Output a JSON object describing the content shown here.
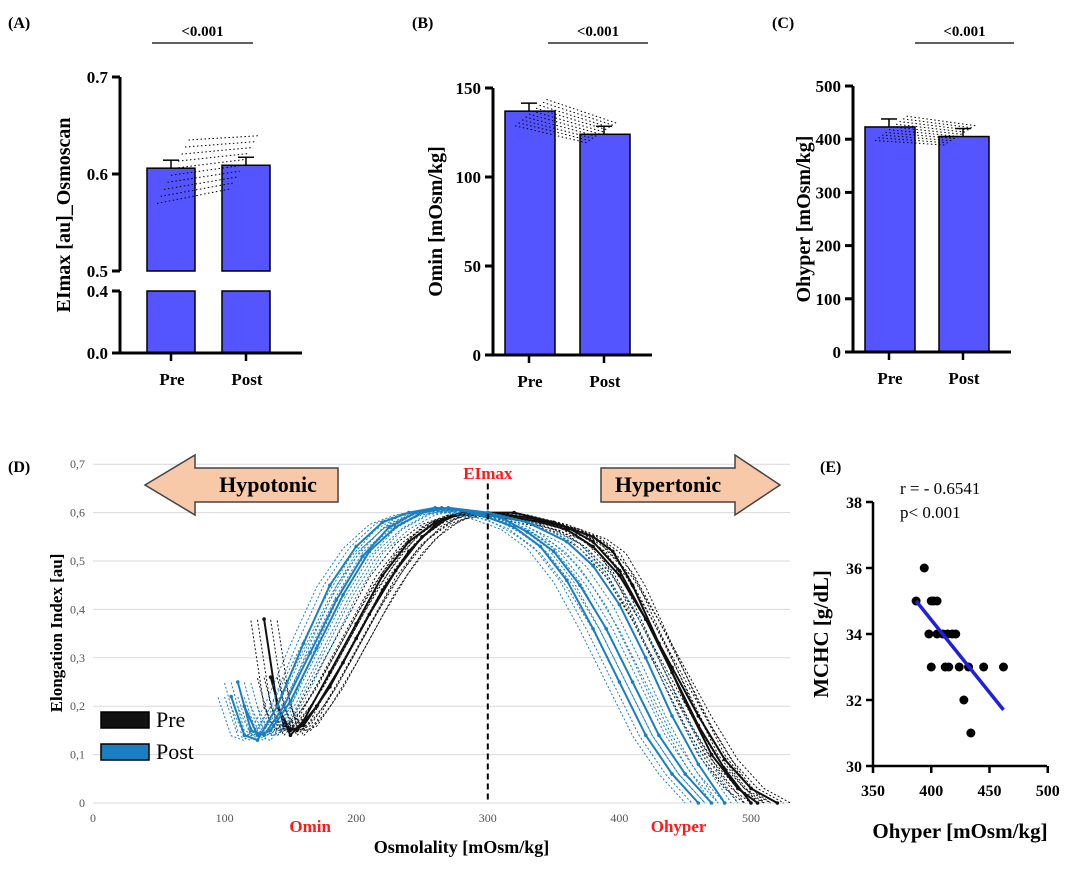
{
  "chart_data": [
    {
      "panel": "(A)",
      "type": "bar",
      "categories": [
        "Pre",
        "Post"
      ],
      "values": [
        0.606,
        0.609
      ],
      "ylabel": "EImax [au]_Osmoscan",
      "yticks": [
        "0.0",
        "0.4",
        "0.5",
        "0.6",
        "0.7"
      ],
      "axis_break": [
        0.4,
        0.5
      ],
      "ylim": [
        0,
        0.7
      ],
      "significance": "<0.001",
      "bar_color": "#5555ff"
    },
    {
      "panel": "(B)",
      "type": "bar",
      "categories": [
        "Pre",
        "Post"
      ],
      "values": [
        137,
        124
      ],
      "ylabel": "Omin [mOsm/kg]",
      "yticks": [
        "0",
        "50",
        "100",
        "150"
      ],
      "ylim": [
        0,
        150
      ],
      "significance": "<0.001",
      "bar_color": "#5555ff"
    },
    {
      "panel": "(C)",
      "type": "bar",
      "categories": [
        "Pre",
        "Post"
      ],
      "values": [
        423,
        405
      ],
      "ylabel": "Ohyper [mOsm/kg]",
      "yticks": [
        "0",
        "100",
        "200",
        "300",
        "400",
        "500"
      ],
      "ylim": [
        0,
        500
      ],
      "significance": "<0.001",
      "bar_color": "#5555ff"
    },
    {
      "panel": "(D)",
      "type": "line",
      "xlabel": "Osmolality [mOsm/kg]",
      "ylabel": "Elongation Index [au]",
      "xticks": [
        "0",
        "100",
        "200",
        "300",
        "400",
        "500"
      ],
      "yticks": [
        "0",
        "0,1",
        "0,2",
        "0,3",
        "0,4",
        "0,5",
        "0,6",
        "0,7"
      ],
      "xlim": [
        0,
        550
      ],
      "ylim": [
        0,
        0.7
      ],
      "annotations": {
        "left_arrow": "Hypotonic",
        "right_arrow": "Hypertonic",
        "eimax": "EImax",
        "omin": "Omin",
        "ohyper": "Ohyper"
      },
      "legend": [
        {
          "label": "Pre",
          "color": "#111111"
        },
        {
          "label": "Post",
          "color": "#1a7fc1"
        }
      ],
      "series": [
        {
          "name": "Pre",
          "color": "#111111",
          "points": [
            [
              130,
              0.38
            ],
            [
              140,
              0.2
            ],
            [
              150,
              0.15
            ],
            [
              160,
              0.16
            ],
            [
              180,
              0.24
            ],
            [
              200,
              0.34
            ],
            [
              220,
              0.44
            ],
            [
              240,
              0.52
            ],
            [
              260,
              0.575
            ],
            [
              280,
              0.6
            ],
            [
              300,
              0.598
            ],
            [
              320,
              0.59
            ],
            [
              340,
              0.58
            ],
            [
              360,
              0.565
            ],
            [
              380,
              0.53
            ],
            [
              400,
              0.47
            ],
            [
              420,
              0.38
            ],
            [
              440,
              0.28
            ],
            [
              460,
              0.18
            ],
            [
              480,
              0.09
            ],
            [
              500,
              0.03
            ],
            [
              520,
              0
            ]
          ]
        },
        {
          "name": "Pre",
          "color": "#111111",
          "points": [
            [
              140,
              0.2
            ],
            [
              150,
              0.14
            ],
            [
              160,
              0.17
            ],
            [
              180,
              0.27
            ],
            [
              200,
              0.37
            ],
            [
              220,
              0.47
            ],
            [
              240,
              0.54
            ],
            [
              260,
              0.58
            ],
            [
              280,
              0.6
            ],
            [
              300,
              0.6
            ],
            [
              330,
              0.59
            ],
            [
              360,
              0.57
            ],
            [
              380,
              0.54
            ],
            [
              400,
              0.48
            ],
            [
              420,
              0.38
            ],
            [
              440,
              0.27
            ],
            [
              460,
              0.16
            ],
            [
              480,
              0.07
            ],
            [
              500,
              0
            ]
          ]
        },
        {
          "name": "Pre",
          "color": "#111111",
          "points": [
            [
              135,
              0.26
            ],
            [
              145,
              0.16
            ],
            [
              155,
              0.15
            ],
            [
              170,
              0.2
            ],
            [
              190,
              0.29
            ],
            [
              210,
              0.39
            ],
            [
              230,
              0.48
            ],
            [
              250,
              0.55
            ],
            [
              270,
              0.59
            ],
            [
              290,
              0.6
            ],
            [
              320,
              0.6
            ],
            [
              350,
              0.58
            ],
            [
              380,
              0.55
            ],
            [
              395,
              0.52
            ],
            [
              410,
              0.45
            ],
            [
              430,
              0.33
            ],
            [
              450,
              0.21
            ],
            [
              470,
              0.1
            ],
            [
              490,
              0.03
            ],
            [
              505,
              0
            ]
          ]
        },
        {
          "name": "Post",
          "color": "#1a7fc1",
          "points": [
            [
              105,
              0.22
            ],
            [
              115,
              0.14
            ],
            [
              125,
              0.13
            ],
            [
              140,
              0.2
            ],
            [
              160,
              0.33
            ],
            [
              180,
              0.45
            ],
            [
              200,
              0.53
            ],
            [
              220,
              0.58
            ],
            [
              240,
              0.6
            ],
            [
              260,
              0.61
            ],
            [
              280,
              0.605
            ],
            [
              300,
              0.59
            ],
            [
              320,
              0.57
            ],
            [
              340,
              0.53
            ],
            [
              360,
              0.46
            ],
            [
              380,
              0.36
            ],
            [
              400,
              0.25
            ],
            [
              420,
              0.14
            ],
            [
              440,
              0.06
            ],
            [
              460,
              0
            ]
          ]
        },
        {
          "name": "Post",
          "color": "#1a7fc1",
          "points": [
            [
              110,
              0.25
            ],
            [
              120,
              0.15
            ],
            [
              130,
              0.14
            ],
            [
              145,
              0.2
            ],
            [
              165,
              0.31
            ],
            [
              185,
              0.42
            ],
            [
              205,
              0.51
            ],
            [
              225,
              0.57
            ],
            [
              245,
              0.6
            ],
            [
              265,
              0.61
            ],
            [
              290,
              0.6
            ],
            [
              310,
              0.59
            ],
            [
              330,
              0.56
            ],
            [
              350,
              0.52
            ],
            [
              370,
              0.45
            ],
            [
              390,
              0.36
            ],
            [
              410,
              0.25
            ],
            [
              430,
              0.14
            ],
            [
              450,
              0.06
            ],
            [
              470,
              0
            ]
          ]
        },
        {
          "name": "Post",
          "color": "#1a7fc1",
          "points": [
            [
              115,
              0.2
            ],
            [
              125,
              0.14
            ],
            [
              135,
              0.15
            ],
            [
              150,
              0.21
            ],
            [
              170,
              0.32
            ],
            [
              190,
              0.43
            ],
            [
              210,
              0.52
            ],
            [
              230,
              0.57
            ],
            [
              250,
              0.6
            ],
            [
              270,
              0.61
            ],
            [
              300,
              0.6
            ],
            [
              330,
              0.58
            ],
            [
              360,
              0.54
            ],
            [
              380,
              0.49
            ],
            [
              400,
              0.41
            ],
            [
              420,
              0.3
            ],
            [
              440,
              0.18
            ],
            [
              460,
              0.08
            ],
            [
              480,
              0
            ]
          ]
        }
      ]
    },
    {
      "panel": "(E)",
      "type": "scatter",
      "xlabel": "Ohyper [mOsm/kg]",
      "ylabel": "MCHC [g/dL]",
      "xticks": [
        "350",
        "400",
        "450",
        "500"
      ],
      "yticks": [
        "30",
        "32",
        "34",
        "36",
        "38"
      ],
      "xlim": [
        350,
        500
      ],
      "ylim": [
        30,
        38
      ],
      "annotation_r": "r = - 0.6541",
      "annotation_p": "p< 0.001",
      "points": [
        [
          387,
          35
        ],
        [
          394,
          36
        ],
        [
          400,
          35
        ],
        [
          402,
          35
        ],
        [
          405,
          35
        ],
        [
          398,
          34
        ],
        [
          405,
          34
        ],
        [
          410,
          34
        ],
        [
          414,
          34
        ],
        [
          418,
          34
        ],
        [
          421,
          34
        ],
        [
          400,
          33
        ],
        [
          412,
          33
        ],
        [
          415,
          33
        ],
        [
          424,
          33
        ],
        [
          432,
          33
        ],
        [
          445,
          33
        ],
        [
          462,
          33
        ],
        [
          428,
          32
        ],
        [
          434,
          31
        ]
      ],
      "fit": [
        [
          387,
          35.0
        ],
        [
          462,
          31.7
        ]
      ],
      "fit_color": "#1f1fe0"
    }
  ]
}
